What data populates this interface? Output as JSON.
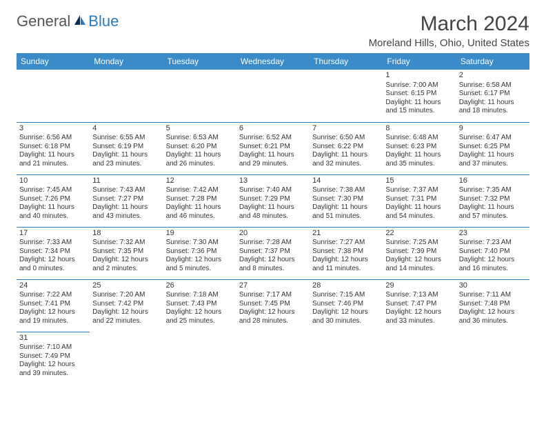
{
  "logo": {
    "text1": "General",
    "text2": "Blue"
  },
  "title": "March 2024",
  "location": "Moreland Hills, Ohio, United States",
  "colors": {
    "header_bg": "#3b8bc9",
    "border": "#2b7bbf",
    "text": "#333333",
    "logo_blue": "#2b7bbf"
  },
  "weekdays": [
    "Sunday",
    "Monday",
    "Tuesday",
    "Wednesday",
    "Thursday",
    "Friday",
    "Saturday"
  ],
  "weeks": [
    [
      null,
      null,
      null,
      null,
      null,
      {
        "n": "1",
        "sr": "7:00 AM",
        "ss": "6:15 PM",
        "dl": "11 hours and 15 minutes."
      },
      {
        "n": "2",
        "sr": "6:58 AM",
        "ss": "6:17 PM",
        "dl": "11 hours and 18 minutes."
      }
    ],
    [
      {
        "n": "3",
        "sr": "6:56 AM",
        "ss": "6:18 PM",
        "dl": "11 hours and 21 minutes."
      },
      {
        "n": "4",
        "sr": "6:55 AM",
        "ss": "6:19 PM",
        "dl": "11 hours and 23 minutes."
      },
      {
        "n": "5",
        "sr": "6:53 AM",
        "ss": "6:20 PM",
        "dl": "11 hours and 26 minutes."
      },
      {
        "n": "6",
        "sr": "6:52 AM",
        "ss": "6:21 PM",
        "dl": "11 hours and 29 minutes."
      },
      {
        "n": "7",
        "sr": "6:50 AM",
        "ss": "6:22 PM",
        "dl": "11 hours and 32 minutes."
      },
      {
        "n": "8",
        "sr": "6:48 AM",
        "ss": "6:23 PM",
        "dl": "11 hours and 35 minutes."
      },
      {
        "n": "9",
        "sr": "6:47 AM",
        "ss": "6:25 PM",
        "dl": "11 hours and 37 minutes."
      }
    ],
    [
      {
        "n": "10",
        "sr": "7:45 AM",
        "ss": "7:26 PM",
        "dl": "11 hours and 40 minutes."
      },
      {
        "n": "11",
        "sr": "7:43 AM",
        "ss": "7:27 PM",
        "dl": "11 hours and 43 minutes."
      },
      {
        "n": "12",
        "sr": "7:42 AM",
        "ss": "7:28 PM",
        "dl": "11 hours and 46 minutes."
      },
      {
        "n": "13",
        "sr": "7:40 AM",
        "ss": "7:29 PM",
        "dl": "11 hours and 48 minutes."
      },
      {
        "n": "14",
        "sr": "7:38 AM",
        "ss": "7:30 PM",
        "dl": "11 hours and 51 minutes."
      },
      {
        "n": "15",
        "sr": "7:37 AM",
        "ss": "7:31 PM",
        "dl": "11 hours and 54 minutes."
      },
      {
        "n": "16",
        "sr": "7:35 AM",
        "ss": "7:32 PM",
        "dl": "11 hours and 57 minutes."
      }
    ],
    [
      {
        "n": "17",
        "sr": "7:33 AM",
        "ss": "7:34 PM",
        "dl": "12 hours and 0 minutes."
      },
      {
        "n": "18",
        "sr": "7:32 AM",
        "ss": "7:35 PM",
        "dl": "12 hours and 2 minutes."
      },
      {
        "n": "19",
        "sr": "7:30 AM",
        "ss": "7:36 PM",
        "dl": "12 hours and 5 minutes."
      },
      {
        "n": "20",
        "sr": "7:28 AM",
        "ss": "7:37 PM",
        "dl": "12 hours and 8 minutes."
      },
      {
        "n": "21",
        "sr": "7:27 AM",
        "ss": "7:38 PM",
        "dl": "12 hours and 11 minutes."
      },
      {
        "n": "22",
        "sr": "7:25 AM",
        "ss": "7:39 PM",
        "dl": "12 hours and 14 minutes."
      },
      {
        "n": "23",
        "sr": "7:23 AM",
        "ss": "7:40 PM",
        "dl": "12 hours and 16 minutes."
      }
    ],
    [
      {
        "n": "24",
        "sr": "7:22 AM",
        "ss": "7:41 PM",
        "dl": "12 hours and 19 minutes."
      },
      {
        "n": "25",
        "sr": "7:20 AM",
        "ss": "7:42 PM",
        "dl": "12 hours and 22 minutes."
      },
      {
        "n": "26",
        "sr": "7:18 AM",
        "ss": "7:43 PM",
        "dl": "12 hours and 25 minutes."
      },
      {
        "n": "27",
        "sr": "7:17 AM",
        "ss": "7:45 PM",
        "dl": "12 hours and 28 minutes."
      },
      {
        "n": "28",
        "sr": "7:15 AM",
        "ss": "7:46 PM",
        "dl": "12 hours and 30 minutes."
      },
      {
        "n": "29",
        "sr": "7:13 AM",
        "ss": "7:47 PM",
        "dl": "12 hours and 33 minutes."
      },
      {
        "n": "30",
        "sr": "7:11 AM",
        "ss": "7:48 PM",
        "dl": "12 hours and 36 minutes."
      }
    ],
    [
      {
        "n": "31",
        "sr": "7:10 AM",
        "ss": "7:49 PM",
        "dl": "12 hours and 39 minutes."
      },
      null,
      null,
      null,
      null,
      null,
      null
    ]
  ],
  "labels": {
    "sunrise": "Sunrise: ",
    "sunset": "Sunset: ",
    "daylight": "Daylight: "
  }
}
